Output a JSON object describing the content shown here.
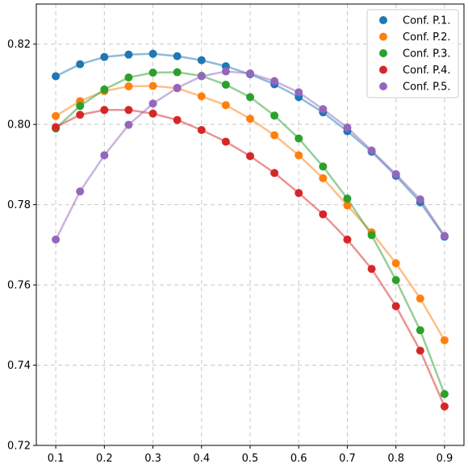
{
  "chart_data": {
    "type": "scatter",
    "title": "",
    "xlabel": "",
    "ylabel": "",
    "xlim": [
      0.06,
      0.94
    ],
    "ylim": [
      0.72,
      0.83
    ],
    "x_ticks": [
      "0.1",
      "0.2",
      "0.3",
      "0.4",
      "0.5",
      "0.6",
      "0.7",
      "0.8",
      "0.9"
    ],
    "y_ticks": [
      "0.72",
      "0.74",
      "0.76",
      "0.78",
      "0.80",
      "0.82"
    ],
    "grid": true,
    "legend_position": "top-right",
    "x": [
      0.1,
      0.15,
      0.2,
      0.25,
      0.3,
      0.35,
      0.4,
      0.45,
      0.5,
      0.55,
      0.6,
      0.65,
      0.7,
      0.75,
      0.8,
      0.85,
      0.9
    ],
    "series": [
      {
        "name": "Conf. P.1.",
        "color": "#1f77b4",
        "values": [
          0.812,
          0.815,
          0.8168,
          0.8174,
          0.8176,
          0.817,
          0.816,
          0.8145,
          0.8125,
          0.81,
          0.8068,
          0.803,
          0.7983,
          0.7932,
          0.7872,
          0.7806,
          0.772
        ]
      },
      {
        "name": "Conf. P.2.",
        "color": "#ff7f0e",
        "values": [
          0.8021,
          0.8058,
          0.8083,
          0.8095,
          0.8096,
          0.809,
          0.807,
          0.8048,
          0.8014,
          0.7973,
          0.7923,
          0.7866,
          0.7798,
          0.7731,
          0.7654,
          0.7566,
          0.7462
        ]
      },
      {
        "name": "Conf. P.3.",
        "color": "#2ca02c",
        "values": [
          0.799,
          0.8046,
          0.8087,
          0.8117,
          0.8129,
          0.813,
          0.8121,
          0.8099,
          0.8068,
          0.8022,
          0.7965,
          0.7895,
          0.7815,
          0.7724,
          0.7612,
          0.7487,
          0.7328
        ]
      },
      {
        "name": "Conf. P.4.",
        "color": "#d62728",
        "values": [
          0.7993,
          0.8024,
          0.8036,
          0.8036,
          0.8027,
          0.8011,
          0.7986,
          0.7957,
          0.7921,
          0.7879,
          0.7829,
          0.7776,
          0.7713,
          0.764,
          0.7547,
          0.7436,
          0.7297
        ]
      },
      {
        "name": "Conf. P.5.",
        "color": "#9467bd",
        "values": [
          0.7713,
          0.7833,
          0.7923,
          0.7999,
          0.8052,
          0.8091,
          0.812,
          0.8132,
          0.8127,
          0.8108,
          0.808,
          0.8038,
          0.7992,
          0.7935,
          0.7876,
          0.7813,
          0.7722
        ]
      }
    ]
  }
}
